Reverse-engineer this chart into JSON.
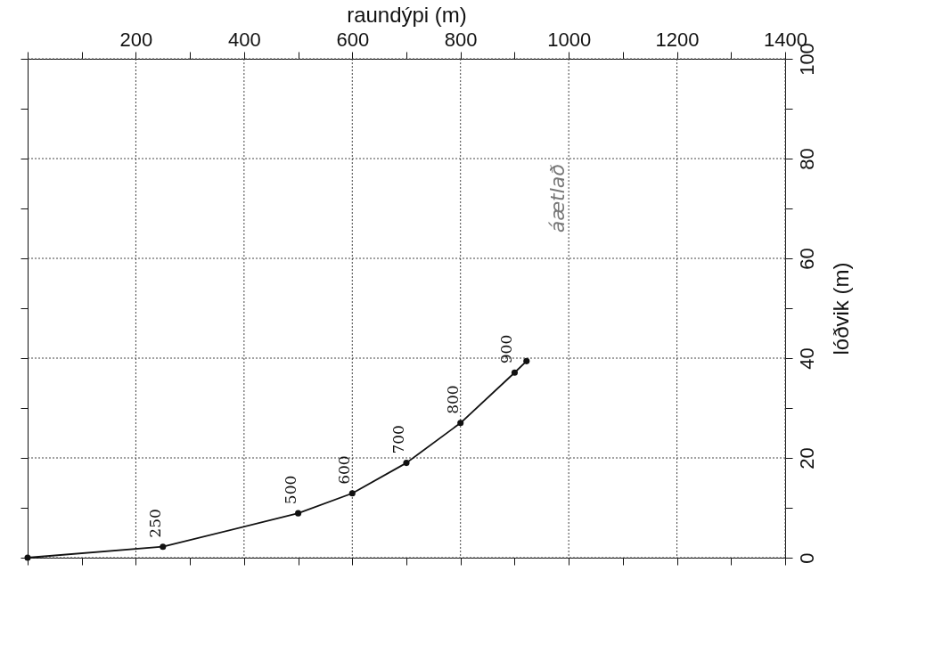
{
  "chart_data": {
    "type": "line",
    "xlabel": "raundýpi (m)",
    "ylabel": "lóðvik (m)",
    "x": [
      0,
      250,
      500,
      600,
      700,
      800,
      900,
      922
    ],
    "series": [
      {
        "color": "#111111",
        "values": [
          0,
          2.2,
          8.9,
          12.9,
          19.0,
          27.0,
          37.1,
          39.4
        ]
      }
    ],
    "value_labels": [
      null,
      "250",
      "500",
      "600",
      "700",
      "800",
      "900",
      null
    ],
    "xlim": [
      0,
      1400
    ],
    "ylim": [
      0,
      100
    ],
    "xticks": [
      {
        "value": 0,
        "label": null
      },
      {
        "value": 100,
        "label": null
      },
      200,
      {
        "value": 300,
        "label": null
      },
      400,
      {
        "value": 500,
        "label": null
      },
      600,
      {
        "value": 700,
        "label": null
      },
      800,
      {
        "value": 900,
        "label": null
      },
      1000,
      {
        "value": 1100,
        "label": null
      },
      1200,
      {
        "value": 1300,
        "label": null
      },
      1400
    ],
    "yticks": [
      0,
      {
        "value": 10,
        "label": null
      },
      20,
      {
        "value": 30,
        "label": null
      },
      40,
      {
        "value": 50,
        "label": null
      },
      60,
      {
        "value": 70,
        "label": null
      },
      80,
      {
        "value": 90,
        "label": null
      },
      100
    ],
    "annotations": [
      "áætlað"
    ],
    "grid": true,
    "marker": "circle",
    "line_style": "solid"
  }
}
